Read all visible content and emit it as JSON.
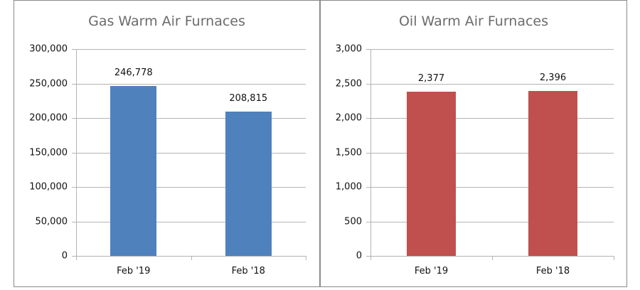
{
  "chart_data": [
    {
      "type": "bar",
      "title": "Gas Warm Air Furnaces",
      "categories": [
        "Feb '19",
        "Feb '18"
      ],
      "values": [
        246778,
        208815
      ],
      "data_labels": [
        "246,778",
        "208,815"
      ],
      "xlabel": "",
      "ylabel": "",
      "ylim": [
        0,
        300000
      ],
      "yticks": [
        "0",
        "50,000",
        "100,000",
        "150,000",
        "200,000",
        "250,000",
        "300,000"
      ],
      "grid": true,
      "legend": "none",
      "color": "#4f81bd"
    },
    {
      "type": "bar",
      "title": "Oil Warm Air Furnaces",
      "categories": [
        "Feb '19",
        "Feb '18"
      ],
      "values": [
        2377,
        2396
      ],
      "data_labels": [
        "2,377",
        "2,396"
      ],
      "xlabel": "",
      "ylabel": "",
      "ylim": [
        0,
        3000
      ],
      "yticks": [
        "0",
        "500",
        "1,000",
        "1,500",
        "2,000",
        "2,500",
        "3,000"
      ],
      "grid": true,
      "legend": "none",
      "color": "#c0504d"
    }
  ]
}
